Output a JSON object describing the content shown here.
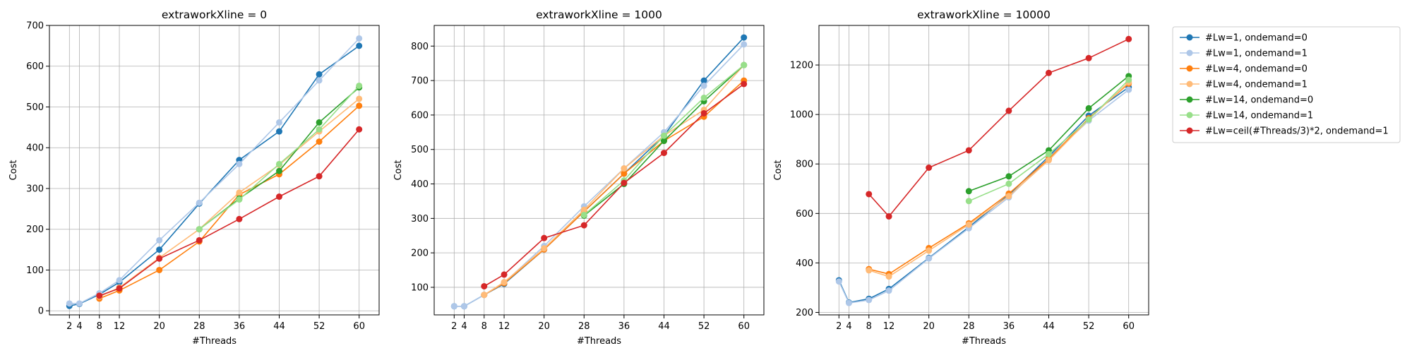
{
  "chart_data": {
    "type": "line",
    "xlabel": "#Threads",
    "ylabel": "Cost",
    "x_ticks": [
      2,
      4,
      8,
      12,
      20,
      28,
      36,
      44,
      52,
      60
    ],
    "legend_placement": "outside-right",
    "grid": true,
    "series_styles": [
      {
        "name": "#Lw=1, ondemand=0",
        "color": "#1f77b4"
      },
      {
        "name": "#Lw=1, ondemand=1",
        "color": "#aec7e8"
      },
      {
        "name": "#Lw=4, ondemand=0",
        "color": "#ff7f0e"
      },
      {
        "name": "#Lw=4, ondemand=1",
        "color": "#ffbb78"
      },
      {
        "name": "#Lw=14, ondemand=0",
        "color": "#2ca02c"
      },
      {
        "name": "#Lw=14, ondemand=1",
        "color": "#98df8a"
      },
      {
        "name": "#Lw=ceil(#Threads/3)*2, ondemand=1",
        "color": "#d62728"
      }
    ],
    "panels": [
      {
        "title": "extraworkXline = 0",
        "ylim": [
          -10,
          700
        ],
        "y_ticks": [
          0,
          100,
          200,
          300,
          400,
          500,
          600,
          700
        ],
        "series": [
          {
            "name": "#Lw=1, ondemand=0",
            "x": [
              2,
              4,
              8,
              12,
              20,
              28,
              36,
              44,
              52,
              60
            ],
            "y": [
              12,
              17,
              40,
              70,
              150,
              263,
              370,
              440,
              580,
              650
            ]
          },
          {
            "name": "#Lw=1, ondemand=1",
            "x": [
              2,
              4,
              8,
              12,
              20,
              28,
              36,
              44,
              52,
              60
            ],
            "y": [
              18,
              18,
              43,
              75,
              173,
              265,
              360,
              462,
              565,
              668
            ]
          },
          {
            "name": "#Lw=4, ondemand=0",
            "x": [
              8,
              12,
              20,
              28,
              36,
              44,
              52,
              60
            ],
            "y": [
              30,
              50,
              100,
              170,
              285,
              335,
              415,
              503
            ]
          },
          {
            "name": "#Lw=4, ondemand=1",
            "x": [
              8,
              12,
              20,
              28,
              36,
              44,
              52,
              60
            ],
            "y": [
              35,
              57,
              130,
              200,
              290,
              358,
              440,
              520
            ]
          },
          {
            "name": "#Lw=14, ondemand=0",
            "x": [
              28,
              36,
              44,
              52,
              60
            ],
            "y": [
              200,
              275,
              343,
              462,
              548
            ]
          },
          {
            "name": "#Lw=14, ondemand=1",
            "x": [
              28,
              36,
              44,
              52,
              60
            ],
            "y": [
              200,
              273,
              360,
              445,
              552
            ]
          },
          {
            "name": "#Lw=ceil(#Threads/3)*2, ondemand=1",
            "x": [
              8,
              12,
              20,
              28,
              36,
              44,
              52,
              60
            ],
            "y": [
              37,
              55,
              128,
              173,
              225,
              280,
              330,
              445
            ]
          }
        ]
      },
      {
        "title": "extraworkXline = 1000",
        "ylim": [
          20,
          860
        ],
        "y_ticks": [
          100,
          200,
          300,
          400,
          500,
          600,
          700,
          800
        ],
        "series": [
          {
            "name": "#Lw=1, ondemand=0",
            "x": [
              2,
              4,
              8,
              12,
              20,
              28,
              36,
              44,
              52,
              60
            ],
            "y": [
              45,
              45,
              78,
              110,
              210,
              320,
              430,
              540,
              700,
              825
            ]
          },
          {
            "name": "#Lw=1, ondemand=1",
            "x": [
              2,
              4,
              8,
              12,
              20,
              28,
              36,
              44,
              52,
              60
            ],
            "y": [
              45,
              45,
              78,
              113,
              220,
              335,
              445,
              550,
              685,
              805
            ]
          },
          {
            "name": "#Lw=4, ondemand=0",
            "x": [
              8,
              12,
              20,
              28,
              36,
              44,
              52,
              60
            ],
            "y": [
              78,
              112,
              210,
              320,
              430,
              525,
              595,
              700
            ]
          },
          {
            "name": "#Lw=4, ondemand=1",
            "x": [
              8,
              12,
              20,
              28,
              36,
              44,
              52,
              60
            ],
            "y": [
              78,
              115,
              213,
              325,
              445,
              540,
              615,
              745
            ]
          },
          {
            "name": "#Lw=14, ondemand=0",
            "x": [
              28,
              36,
              44,
              52,
              60
            ],
            "y": [
              308,
              400,
              525,
              640,
              745
            ]
          },
          {
            "name": "#Lw=14, ondemand=1",
            "x": [
              28,
              36,
              44,
              52,
              60
            ],
            "y": [
              310,
              410,
              540,
              650,
              745
            ]
          },
          {
            "name": "#Lw=ceil(#Threads/3)*2, ondemand=1",
            "x": [
              8,
              12,
              20,
              28,
              36,
              44,
              52,
              60
            ],
            "y": [
              103,
              137,
              243,
              280,
              403,
              490,
              605,
              690
            ]
          }
        ]
      },
      {
        "title": "extraworkXline = 10000",
        "ylim": [
          190,
          1360
        ],
        "y_ticks": [
          200,
          400,
          600,
          800,
          1000,
          1200
        ],
        "series": [
          {
            "name": "#Lw=1, ondemand=0",
            "x": [
              2,
              4,
              8,
              12,
              20,
              28,
              36,
              44,
              52,
              60
            ],
            "y": [
              330,
              240,
              255,
              295,
              420,
              545,
              675,
              830,
              995,
              1110
            ]
          },
          {
            "name": "#Lw=1, ondemand=1",
            "x": [
              2,
              4,
              8,
              12,
              20,
              28,
              36,
              44,
              52,
              60
            ],
            "y": [
              325,
              238,
              250,
              288,
              418,
              540,
              665,
              825,
              975,
              1100
            ]
          },
          {
            "name": "#Lw=4, ondemand=0",
            "x": [
              8,
              12,
              20,
              28,
              36,
              44,
              52,
              60
            ],
            "y": [
              375,
              355,
              460,
              560,
              680,
              820,
              985,
              1125
            ]
          },
          {
            "name": "#Lw=4, ondemand=1",
            "x": [
              8,
              12,
              20,
              28,
              36,
              44,
              52,
              60
            ],
            "y": [
              370,
              345,
              450,
              555,
              670,
              815,
              980,
              1130
            ]
          },
          {
            "name": "#Lw=14, ondemand=0",
            "x": [
              28,
              36,
              44,
              52,
              60
            ],
            "y": [
              690,
              750,
              855,
              1025,
              1155
            ]
          },
          {
            "name": "#Lw=14, ondemand=1",
            "x": [
              28,
              36,
              44,
              52,
              60
            ],
            "y": [
              650,
              720,
              840,
              980,
              1140
            ]
          },
          {
            "name": "#Lw=ceil(#Threads/3)*2, ondemand=1",
            "x": [
              8,
              12,
              20,
              28,
              36,
              44,
              52,
              60
            ],
            "y": [
              678,
              588,
              785,
              855,
              1015,
              1168,
              1228,
              1305
            ]
          }
        ]
      }
    ]
  }
}
